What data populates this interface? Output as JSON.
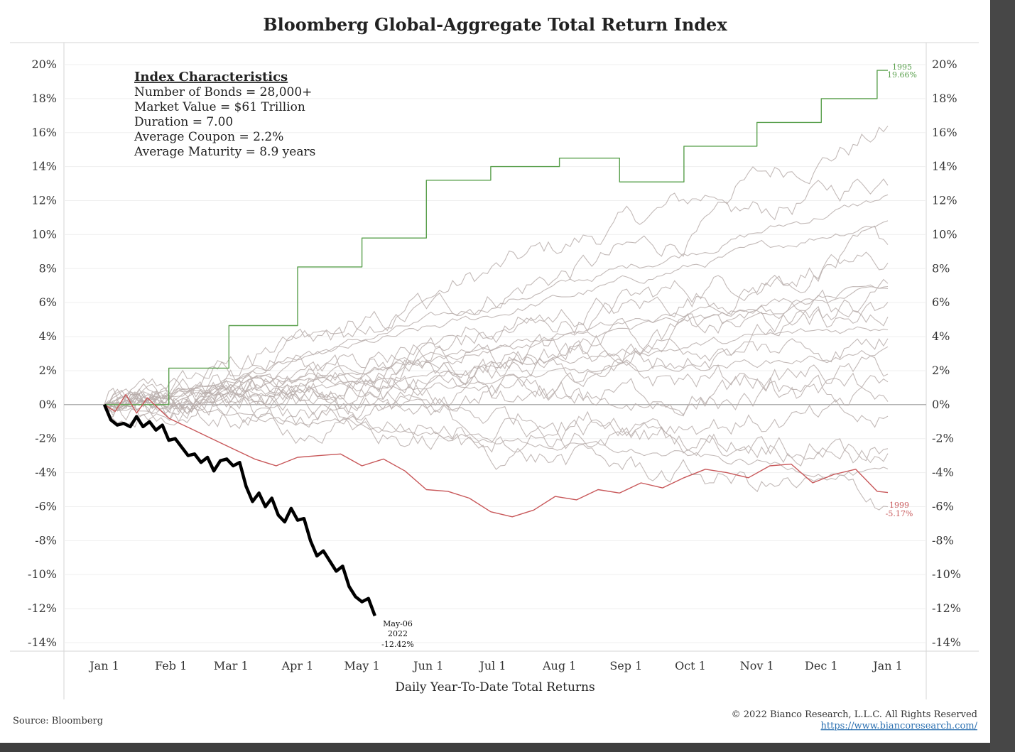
{
  "chart_data": {
    "type": "line",
    "title": "Bloomberg Global-Aggregate Total Return Index",
    "xlabel": "Daily Year-To-Date Total Returns",
    "ylabel": "",
    "ylim": [
      -14,
      20
    ],
    "y_ticks": [
      20,
      18,
      16,
      14,
      12,
      10,
      8,
      6,
      4,
      2,
      0,
      -2,
      -4,
      -6,
      -8,
      -10,
      -12,
      -14
    ],
    "y_tick_labels": [
      "20%",
      "18%",
      "16%",
      "14%",
      "12%",
      "10%",
      "8%",
      "6%",
      "4%",
      "2%",
      "0%",
      "-2%",
      "-4%",
      "-6%",
      "-8%",
      "-10%",
      "-12%",
      "-14%"
    ],
    "x_ticks": [
      0,
      31,
      59,
      90,
      120,
      151,
      181,
      212,
      243,
      273,
      304,
      334,
      365
    ],
    "x_tick_labels": [
      "Jan 1",
      "Feb 1",
      "Mar 1",
      "Apr 1",
      "May 1",
      "Jun 1",
      "Jul 1",
      "Aug 1",
      "Sep 1",
      "Oct 1",
      "Nov 1",
      "Dec 1",
      "Jan 1"
    ],
    "series": [
      {
        "name": "1995",
        "color": "#5aa04d",
        "style": "step",
        "x": [
          0,
          30,
          30,
          58,
          58,
          90,
          90,
          120,
          120,
          150,
          150,
          180,
          180,
          212,
          212,
          240,
          240,
          270,
          270,
          304,
          304,
          334,
          334,
          360,
          360,
          365
        ],
        "values": [
          0,
          0,
          2.15,
          2.15,
          4.65,
          4.65,
          8.1,
          8.1,
          9.8,
          9.8,
          13.2,
          13.2,
          14.0,
          14.0,
          14.5,
          14.5,
          13.1,
          13.1,
          15.2,
          15.2,
          16.6,
          16.6,
          18.0,
          18.0,
          19.66,
          19.66
        ],
        "end_label": "1995",
        "end_value_label": "19.66%"
      },
      {
        "name": "1999",
        "color": "#c8585a",
        "style": "line",
        "x": [
          0,
          5,
          10,
          15,
          20,
          30,
          40,
          50,
          60,
          70,
          80,
          90,
          100,
          110,
          120,
          130,
          140,
          150,
          160,
          170,
          180,
          190,
          200,
          210,
          220,
          230,
          240,
          250,
          260,
          270,
          280,
          290,
          300,
          310,
          320,
          330,
          340,
          350,
          360,
          365
        ],
        "values": [
          0,
          -0.4,
          0.6,
          -0.5,
          0.4,
          -0.8,
          -1.4,
          -2.0,
          -2.6,
          -3.2,
          -3.6,
          -3.1,
          -3.0,
          -2.9,
          -3.6,
          -3.2,
          -3.9,
          -5.0,
          -5.1,
          -5.5,
          -6.3,
          -6.6,
          -6.2,
          -5.4,
          -5.6,
          -5.0,
          -5.2,
          -4.6,
          -4.9,
          -4.3,
          -3.8,
          -4.0,
          -4.3,
          -3.6,
          -3.5,
          -4.6,
          -4.1,
          -3.8,
          -5.1,
          -5.17
        ],
        "end_label": "1999",
        "end_value_label": "-5.17%"
      },
      {
        "name": "2022",
        "color": "#000000",
        "style": "line",
        "x": [
          0,
          3,
          6,
          9,
          12,
          15,
          18,
          21,
          24,
          27,
          30,
          33,
          36,
          39,
          42,
          45,
          48,
          51,
          54,
          57,
          60,
          63,
          66,
          69,
          72,
          75,
          78,
          81,
          84,
          87,
          90,
          93,
          96,
          99,
          102,
          105,
          108,
          111,
          114,
          117,
          120,
          123,
          126
        ],
        "values": [
          0,
          -0.9,
          -1.2,
          -1.1,
          -1.3,
          -0.7,
          -1.3,
          -1.0,
          -1.5,
          -1.2,
          -2.1,
          -2.0,
          -2.5,
          -3.0,
          -2.9,
          -3.4,
          -3.1,
          -3.9,
          -3.3,
          -3.2,
          -3.6,
          -3.4,
          -4.8,
          -5.7,
          -5.2,
          -6.0,
          -5.5,
          -6.5,
          -6.9,
          -6.1,
          -6.8,
          -6.7,
          -8.0,
          -8.9,
          -8.6,
          -9.2,
          -9.8,
          -9.5,
          -10.7,
          -11.3,
          -11.6,
          -11.4,
          -12.42
        ],
        "end_label": "May-06\n2022",
        "end_value_label": "-12.42%"
      }
    ],
    "background_series_note": "Other years' daily paths drawn as light gray lines"
  },
  "annotation_box": {
    "title": "Index Characteristics",
    "lines": [
      "Number of Bonds = 28,000+",
      "Market Value = $61 Trillion",
      "Duration = 7.00",
      "Average Coupon = 2.2%",
      "Average Maturity = 8.9 years"
    ]
  },
  "labels": {
    "label_1995_year": "1995",
    "label_1995_value": "19.66%",
    "label_1999_year": "1999",
    "label_1999_value": "-5.17%",
    "label_2022_date": "May-06",
    "label_2022_year": "2022",
    "label_2022_value": "-12.42%"
  },
  "footer": {
    "source": "Source: Bloomberg",
    "copyright": "© 2022 Bianco Research, L.L.C. All Rights Reserved",
    "url": "https://www.biancoresearch.com/"
  },
  "colors": {
    "gray_paths": "#b9aeab",
    "green": "#5aa04d",
    "red": "#c8585a",
    "black": "#000000"
  }
}
